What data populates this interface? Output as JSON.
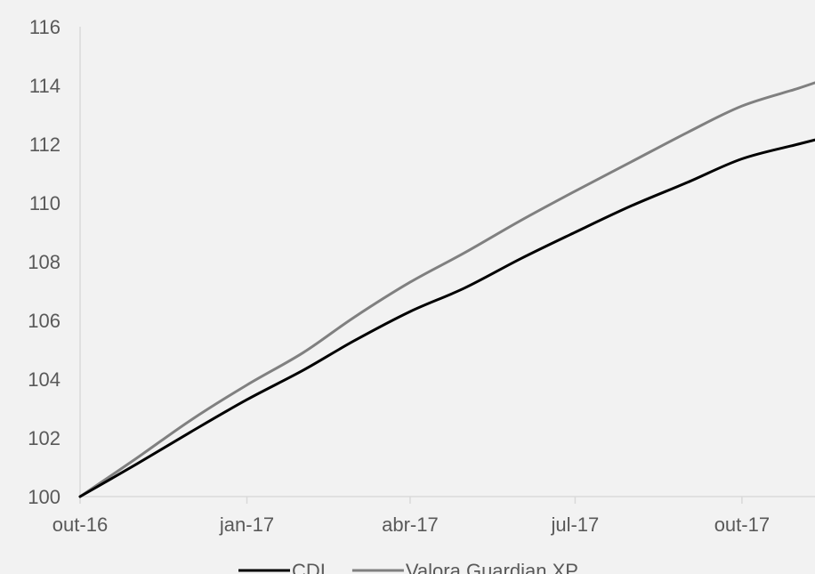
{
  "chart_data": {
    "type": "line",
    "title": "",
    "xlabel": "",
    "ylabel": "",
    "x_ticks": [
      "out-16",
      "jan-17",
      "abr-17",
      "jul-17",
      "out-17"
    ],
    "x_tick_dates": [
      "2016-10-01",
      "2017-01-01",
      "2017-04-01",
      "2017-07-01",
      "2017-10-01"
    ],
    "x_range": [
      "2016-10-01",
      "2017-11-20"
    ],
    "ylim": [
      100,
      116
    ],
    "y_ticks": [
      100,
      102,
      104,
      106,
      108,
      110,
      112,
      114,
      116
    ],
    "grid": false,
    "legend_position": "bottom-center",
    "series": [
      {
        "name": "CDI",
        "color": "#000000",
        "x": [
          "2016-10-01",
          "2016-11-01",
          "2016-12-01",
          "2017-01-01",
          "2017-02-01",
          "2017-03-01",
          "2017-04-01",
          "2017-05-01",
          "2017-06-01",
          "2017-07-01",
          "2017-08-01",
          "2017-09-01",
          "2017-10-01",
          "2017-11-01",
          "2017-11-20"
        ],
        "y": [
          100.0,
          101.1,
          102.2,
          103.3,
          104.3,
          105.3,
          106.3,
          107.1,
          108.1,
          109.0,
          109.9,
          110.7,
          111.5,
          112.0,
          112.3
        ]
      },
      {
        "name": "Valora Guardian XP",
        "color": "#808080",
        "x": [
          "2016-10-01",
          "2016-11-01",
          "2016-12-01",
          "2017-01-01",
          "2017-02-01",
          "2017-03-01",
          "2017-04-01",
          "2017-05-01",
          "2017-06-01",
          "2017-07-01",
          "2017-08-01",
          "2017-09-01",
          "2017-10-01",
          "2017-11-01",
          "2017-11-20"
        ],
        "y": [
          100.0,
          101.3,
          102.6,
          103.8,
          104.9,
          106.1,
          107.3,
          108.3,
          109.4,
          110.4,
          111.4,
          112.4,
          113.3,
          113.9,
          114.3
        ]
      }
    ]
  }
}
